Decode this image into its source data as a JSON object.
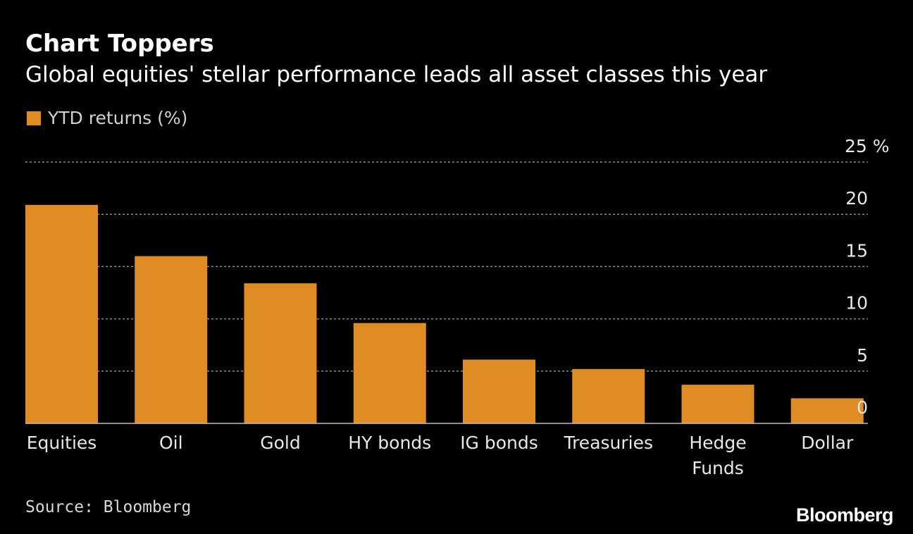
{
  "title": "Chart Toppers",
  "subtitle": "Global equities' stellar performance leads all asset classes this year",
  "legend_label": "YTD returns (%)",
  "source": "Source: Bloomberg",
  "brand": "Bloomberg",
  "colors": {
    "bar": "#e08c25",
    "background": "#000000",
    "grid": "#8a8a8a",
    "text": "#ffffff"
  },
  "chart_data": {
    "type": "bar",
    "categories": [
      "Equities",
      "Oil",
      "Gold",
      "HY bonds",
      "IG bonds",
      "Treasuries",
      "Hedge Funds",
      "Dollar"
    ],
    "category_lines": [
      [
        "Equities"
      ],
      [
        "Oil"
      ],
      [
        "Gold"
      ],
      [
        "HY bonds"
      ],
      [
        "IG bonds"
      ],
      [
        "Treasuries"
      ],
      [
        "Hedge",
        "Funds"
      ],
      [
        "Dollar"
      ]
    ],
    "series": [
      {
        "name": "YTD returns (%)",
        "values": [
          20.9,
          16.0,
          13.4,
          9.6,
          6.1,
          5.2,
          3.7,
          2.4
        ]
      }
    ],
    "ylim": [
      0,
      25
    ],
    "yticks": [
      0,
      5,
      10,
      15,
      20,
      25
    ],
    "ytick_labels": [
      "0",
      "5",
      "10",
      "15",
      "20",
      "25 %"
    ],
    "y_axis_side": "right",
    "grid": true,
    "legend_position": "top-left"
  }
}
